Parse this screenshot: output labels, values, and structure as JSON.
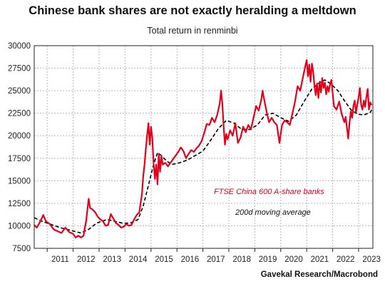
{
  "chart_data": {
    "type": "line",
    "title": "Chinese bank shares are not exactly heralding a meltdown",
    "subtitle": "Total return in renminbi",
    "source": "Gavekal Research/Macrobond",
    "ylim": [
      7500,
      30000
    ],
    "y_ticks": [
      7500,
      10000,
      12500,
      15000,
      17500,
      20000,
      22500,
      25000,
      27500,
      30000
    ],
    "x_range": [
      2010.5,
      2023.55
    ],
    "x_ticks": [
      "2011",
      "2012",
      "2013",
      "2014",
      "2015",
      "2016",
      "2017",
      "2018",
      "2019",
      "2020",
      "2021",
      "2022",
      "2023"
    ],
    "grid": true,
    "colors": {
      "bank": "#e3001b",
      "ma": "#000000",
      "grid": "#b8b8b8"
    },
    "series": [
      {
        "name": "FTSE China 600 A-share banks",
        "style": "solid",
        "points": [
          [
            2010.5,
            10100
          ],
          [
            2010.6,
            9800
          ],
          [
            2010.7,
            10300
          ],
          [
            2010.8,
            10900
          ],
          [
            2010.85,
            11200
          ],
          [
            2010.95,
            10500
          ],
          [
            2011.1,
            10200
          ],
          [
            2011.25,
            9600
          ],
          [
            2011.4,
            9400
          ],
          [
            2011.55,
            9200
          ],
          [
            2011.7,
            9800
          ],
          [
            2011.85,
            9300
          ],
          [
            2012.0,
            9100
          ],
          [
            2012.1,
            8700
          ],
          [
            2012.2,
            8900
          ],
          [
            2012.3,
            8700
          ],
          [
            2012.4,
            8900
          ],
          [
            2012.45,
            9800
          ],
          [
            2012.5,
            10500
          ],
          [
            2012.55,
            11800
          ],
          [
            2012.6,
            13000
          ],
          [
            2012.65,
            12000
          ],
          [
            2012.75,
            11800
          ],
          [
            2012.85,
            11500
          ],
          [
            2012.95,
            11000
          ],
          [
            2013.05,
            10700
          ],
          [
            2013.15,
            10500
          ],
          [
            2013.25,
            10000
          ],
          [
            2013.35,
            10100
          ],
          [
            2013.45,
            11300
          ],
          [
            2013.55,
            10800
          ],
          [
            2013.65,
            10300
          ],
          [
            2013.75,
            10100
          ],
          [
            2013.85,
            9800
          ],
          [
            2013.95,
            9900
          ],
          [
            2014.05,
            10200
          ],
          [
            2014.15,
            10000
          ],
          [
            2014.25,
            10100
          ],
          [
            2014.35,
            10700
          ],
          [
            2014.45,
            11200
          ],
          [
            2014.55,
            11500
          ],
          [
            2014.6,
            12500
          ],
          [
            2014.65,
            13500
          ],
          [
            2014.7,
            15500
          ],
          [
            2014.75,
            16800
          ],
          [
            2014.8,
            18500
          ],
          [
            2014.85,
            20000
          ],
          [
            2014.9,
            21400
          ],
          [
            2014.95,
            19000
          ],
          [
            2015.0,
            21000
          ],
          [
            2015.05,
            19800
          ],
          [
            2015.1,
            17000
          ],
          [
            2015.15,
            15200
          ],
          [
            2015.2,
            16800
          ],
          [
            2015.25,
            14600
          ],
          [
            2015.3,
            18000
          ],
          [
            2015.35,
            16000
          ],
          [
            2015.4,
            17800
          ],
          [
            2015.45,
            16800
          ],
          [
            2015.55,
            17000
          ],
          [
            2015.65,
            16600
          ],
          [
            2015.75,
            17000
          ],
          [
            2015.85,
            17400
          ],
          [
            2015.95,
            17800
          ],
          [
            2016.05,
            18200
          ],
          [
            2016.15,
            18700
          ],
          [
            2016.25,
            18300
          ],
          [
            2016.35,
            17500
          ],
          [
            2016.45,
            18000
          ],
          [
            2016.55,
            18400
          ],
          [
            2016.65,
            18200
          ],
          [
            2016.75,
            18600
          ],
          [
            2016.85,
            18900
          ],
          [
            2016.95,
            19400
          ],
          [
            2017.05,
            20300
          ],
          [
            2017.15,
            21300
          ],
          [
            2017.25,
            21200
          ],
          [
            2017.35,
            22000
          ],
          [
            2017.45,
            21500
          ],
          [
            2017.55,
            22300
          ],
          [
            2017.65,
            23600
          ],
          [
            2017.7,
            25000
          ],
          [
            2017.75,
            23500
          ],
          [
            2017.8,
            21000
          ],
          [
            2017.85,
            19000
          ],
          [
            2017.9,
            20200
          ],
          [
            2017.95,
            19600
          ],
          [
            2018.05,
            20600
          ],
          [
            2018.15,
            20000
          ],
          [
            2018.25,
            21400
          ],
          [
            2018.35,
            19200
          ],
          [
            2018.45,
            19800
          ],
          [
            2018.55,
            21000
          ],
          [
            2018.65,
            20400
          ],
          [
            2018.75,
            21200
          ],
          [
            2018.85,
            20700
          ],
          [
            2018.95,
            22000
          ],
          [
            2019.05,
            23300
          ],
          [
            2019.15,
            22800
          ],
          [
            2019.25,
            24000
          ],
          [
            2019.3,
            25000
          ],
          [
            2019.35,
            24200
          ],
          [
            2019.45,
            22700
          ],
          [
            2019.55,
            21500
          ],
          [
            2019.65,
            22000
          ],
          [
            2019.75,
            21500
          ],
          [
            2019.85,
            21200
          ],
          [
            2019.95,
            19200
          ],
          [
            2020.05,
            21200
          ],
          [
            2020.15,
            21700
          ],
          [
            2020.25,
            21500
          ],
          [
            2020.35,
            21200
          ],
          [
            2020.45,
            22500
          ],
          [
            2020.55,
            23800
          ],
          [
            2020.65,
            25500
          ],
          [
            2020.75,
            25000
          ],
          [
            2020.85,
            26400
          ],
          [
            2020.95,
            27800
          ],
          [
            2021.0,
            28400
          ],
          [
            2021.05,
            26600
          ],
          [
            2021.1,
            27900
          ],
          [
            2021.15,
            26000
          ],
          [
            2021.2,
            28000
          ],
          [
            2021.25,
            27100
          ],
          [
            2021.3,
            25500
          ],
          [
            2021.35,
            24500
          ],
          [
            2021.4,
            25800
          ],
          [
            2021.45,
            24200
          ],
          [
            2021.5,
            26000
          ],
          [
            2021.55,
            24800
          ],
          [
            2021.6,
            26400
          ],
          [
            2021.65,
            25300
          ],
          [
            2021.7,
            25900
          ],
          [
            2021.75,
            24600
          ],
          [
            2021.8,
            25500
          ],
          [
            2021.85,
            24900
          ],
          [
            2021.9,
            25700
          ],
          [
            2021.95,
            26200
          ],
          [
            2022.05,
            23300
          ],
          [
            2022.15,
            22900
          ],
          [
            2022.25,
            23800
          ],
          [
            2022.35,
            22400
          ],
          [
            2022.45,
            21500
          ],
          [
            2022.5,
            22100
          ],
          [
            2022.55,
            20900
          ],
          [
            2022.6,
            19700
          ],
          [
            2022.65,
            21400
          ],
          [
            2022.7,
            22700
          ],
          [
            2022.75,
            22000
          ],
          [
            2022.8,
            23300
          ],
          [
            2022.85,
            23900
          ],
          [
            2022.9,
            22600
          ],
          [
            2022.95,
            23500
          ],
          [
            2023.0,
            24300
          ],
          [
            2023.05,
            25300
          ],
          [
            2023.1,
            23400
          ],
          [
            2023.15,
            22900
          ],
          [
            2023.2,
            23900
          ],
          [
            2023.25,
            23200
          ],
          [
            2023.3,
            24300
          ],
          [
            2023.35,
            25200
          ],
          [
            2023.4,
            22900
          ],
          [
            2023.45,
            23700
          ],
          [
            2023.5,
            23400
          ]
        ]
      },
      {
        "name": "200d moving average",
        "style": "dashed",
        "points": [
          [
            2010.5,
            10900
          ],
          [
            2010.8,
            10500
          ],
          [
            2011.1,
            10200
          ],
          [
            2011.5,
            9800
          ],
          [
            2011.9,
            9500
          ],
          [
            2012.3,
            9200
          ],
          [
            2012.6,
            9600
          ],
          [
            2012.9,
            10300
          ],
          [
            2013.3,
            10700
          ],
          [
            2013.6,
            10500
          ],
          [
            2013.9,
            10300
          ],
          [
            2014.2,
            10300
          ],
          [
            2014.5,
            10700
          ],
          [
            2014.7,
            12200
          ],
          [
            2014.9,
            14500
          ],
          [
            2015.1,
            16800
          ],
          [
            2015.25,
            18100
          ],
          [
            2015.4,
            17800
          ],
          [
            2015.6,
            17200
          ],
          [
            2015.8,
            16800
          ],
          [
            2016.1,
            17000
          ],
          [
            2016.4,
            17300
          ],
          [
            2016.7,
            17800
          ],
          [
            2017.0,
            18300
          ],
          [
            2017.3,
            19500
          ],
          [
            2017.6,
            20800
          ],
          [
            2017.9,
            21700
          ],
          [
            2018.2,
            21400
          ],
          [
            2018.5,
            20700
          ],
          [
            2018.8,
            20700
          ],
          [
            2019.1,
            21200
          ],
          [
            2019.4,
            22300
          ],
          [
            2019.7,
            22500
          ],
          [
            2020.0,
            22000
          ],
          [
            2020.3,
            21600
          ],
          [
            2020.6,
            22300
          ],
          [
            2020.9,
            23800
          ],
          [
            2021.2,
            25200
          ],
          [
            2021.5,
            25900
          ],
          [
            2021.7,
            26200
          ],
          [
            2021.95,
            25700
          ],
          [
            2022.2,
            25000
          ],
          [
            2022.45,
            23900
          ],
          [
            2022.7,
            22900
          ],
          [
            2022.95,
            22400
          ],
          [
            2023.2,
            22300
          ],
          [
            2023.45,
            22600
          ],
          [
            2023.55,
            23100
          ]
        ]
      }
    ]
  }
}
